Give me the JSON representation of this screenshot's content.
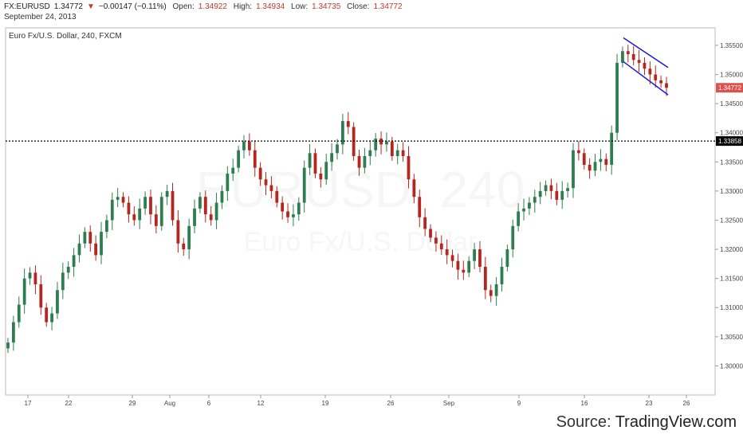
{
  "header": {
    "symbol": "FX:EURUSD",
    "last": "1.34772",
    "arrow": "▼",
    "change": "−0.00147 (−0.11%)",
    "open_label": "Open:",
    "open": "1.34922",
    "high_label": "High:",
    "high": "1.34934",
    "low_label": "Low:",
    "low": "1.34735",
    "close_label": "Close:",
    "close": "1.34772",
    "date": "September 24, 2013"
  },
  "chart_title": "Euro Fx/U.S. Dollar, 240, FXCM",
  "watermark": {
    "line1": "EURUSD, 240",
    "line2": "Euro Fx/U.S. Dollar"
  },
  "source": {
    "prefix": "Source: ",
    "name": "TradingView.com"
  },
  "colors": {
    "up": "#2e7d4f",
    "down": "#b5261e",
    "price_tag": "#d9534f",
    "channel": "#1a1adb",
    "level_tag": "#000000"
  },
  "chart_data": {
    "type": "candlestick",
    "title": "Euro Fx/U.S. Dollar, 240, FXCM",
    "ylim": [
      1.295,
      1.358
    ],
    "y_ticks": [
      "1.35500",
      "1.35000",
      "1.34500",
      "1.34000",
      "1.33500",
      "1.33000",
      "1.32500",
      "1.32000",
      "1.31500",
      "1.31000",
      "1.30500",
      "1.30000"
    ],
    "x_ticks": [
      "17",
      "22",
      "29",
      "Aug",
      "6",
      "12",
      "19",
      "26",
      "Sep",
      "9",
      "16",
      "23",
      "26"
    ],
    "last_price": 1.34772,
    "last_price_label": "1.34772",
    "horizontal_level": 1.33858,
    "horizontal_level_label": "1.33858",
    "channel": {
      "upper": [
        [
          0,
          1.3563
        ],
        [
          1,
          1.3512
        ]
      ],
      "lower": [
        [
          0,
          1.3522
        ],
        [
          1,
          1.3465
        ]
      ]
    },
    "closes": [
      1.304,
      1.3075,
      1.3105,
      1.315,
      1.316,
      1.314,
      1.31,
      1.3075,
      1.309,
      1.313,
      1.316,
      1.317,
      1.319,
      1.321,
      1.323,
      1.321,
      1.319,
      1.323,
      1.325,
      1.3285,
      1.329,
      1.328,
      1.326,
      1.325,
      1.327,
      1.329,
      1.326,
      1.324,
      1.329,
      1.33,
      1.325,
      1.321,
      1.32,
      1.324,
      1.327,
      1.329,
      1.326,
      1.325,
      1.328,
      1.33,
      1.333,
      1.334,
      1.337,
      1.3385,
      1.337,
      1.334,
      1.332,
      1.331,
      1.33,
      1.328,
      1.3265,
      1.3255,
      1.326,
      1.328,
      1.334,
      1.3365,
      1.333,
      1.332,
      1.335,
      1.3365,
      1.338,
      1.342,
      1.341,
      1.336,
      1.334,
      1.336,
      1.337,
      1.339,
      1.338,
      1.3385,
      1.336,
      1.337,
      1.336,
      1.332,
      1.329,
      1.3255,
      1.3235,
      1.322,
      1.321,
      1.32,
      1.319,
      1.318,
      1.3165,
      1.316,
      1.318,
      1.32,
      1.317,
      1.313,
      1.312,
      1.314,
      1.317,
      1.32,
      1.324,
      1.3265,
      1.327,
      1.328,
      1.329,
      1.33,
      1.331,
      1.33,
      1.3285,
      1.33,
      1.3305,
      1.337,
      1.3365,
      1.3345,
      1.3335,
      1.335,
      1.3355,
      1.3345,
      1.34,
      1.352,
      1.354,
      1.3535,
      1.3525,
      1.352,
      1.351,
      1.35,
      1.349,
      1.3485,
      1.34772
    ]
  }
}
